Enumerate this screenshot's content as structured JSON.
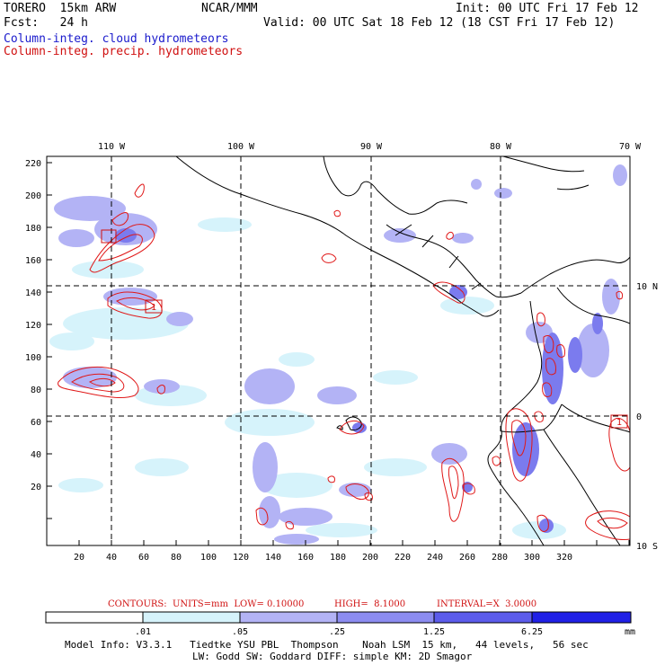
{
  "header": {
    "model": "TORERO  15km ARW",
    "forecast": "Fcst:   24 h",
    "org": "NCAR/MMM",
    "init": "Init: 00 UTC Fri 17 Feb 12",
    "valid": "Valid: 00 UTC Sat 18 Feb 12 (18 CST Fri 17 Feb 12)",
    "field_cloud": "Column-integ. cloud hydrometeors",
    "field_precip": "Column-integ. precip. hydrometeors"
  },
  "axes": {
    "lon_labels": [
      "110 W",
      "100 W",
      "90 W",
      "80 W",
      "70 W"
    ],
    "lat_labels": [
      "10 N",
      "0",
      "10 S"
    ],
    "y_ticks": [
      "220",
      "200",
      "180",
      "160",
      "140",
      "120",
      "100",
      "80",
      "60",
      "40",
      "20"
    ],
    "x_ticks": [
      "20",
      "40",
      "60",
      "80",
      "100",
      "120",
      "140",
      "160",
      "180",
      "200",
      "220",
      "240",
      "260",
      "280",
      "300",
      "320"
    ]
  },
  "markers": {
    "high_label": "1",
    "low_label": "1"
  },
  "contour_legend": {
    "contours": "CONTOURS:  UNITS=mm  LOW= 0.10000",
    "high": "HIGH=  8.1000",
    "interval": "INTERVAL=X  3.0000"
  },
  "color_bar": {
    "labels": [
      ".01",
      ".05",
      ".25",
      "1.25",
      "6.25",
      "mm"
    ],
    "colors": [
      "#ffffff",
      "#d6f3fb",
      "#b3b3f5",
      "#8c8cf0",
      "#5c5ceb",
      "#2020e6"
    ]
  },
  "footer": {
    "line1": "Model Info: V3.3.1   Tiedtke YSU PBL  Thompson    Noah LSM  15 km,   44 levels,   56 sec",
    "line2": "LW: Godd SW: Goddard DIFF: simple KM: 2D Smagor"
  }
}
